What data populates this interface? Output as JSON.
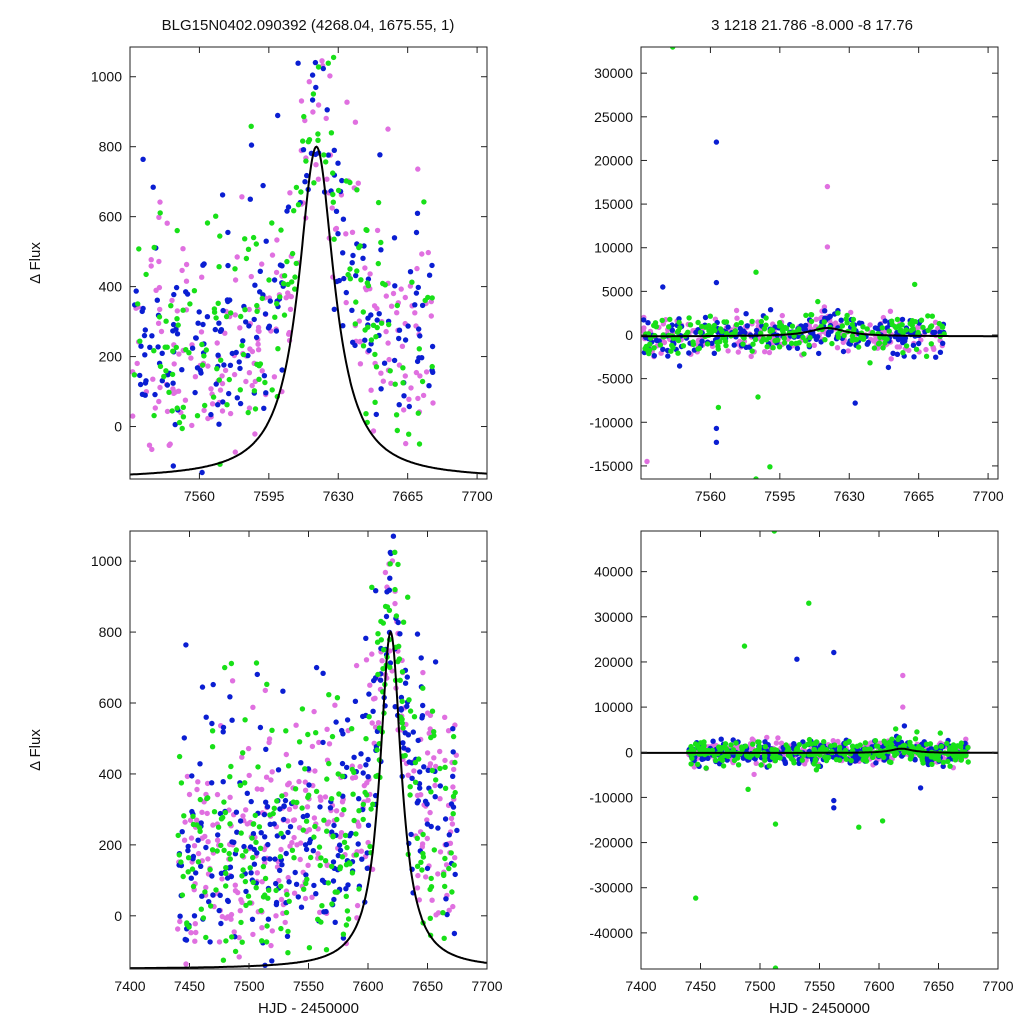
{
  "header": {
    "left_title": "BLG15N0402.090392 (4268.04, 1675.55,    1)",
    "right_title": "3   1218   21.786   -8.000   -8   17.76"
  },
  "colors": {
    "pink": "#e070e0",
    "blue": "#0a1ed2",
    "green": "#18e018",
    "model": "#000000"
  },
  "chart_data": [
    {
      "type": "scatter",
      "panel": "top-left",
      "xlabel": "",
      "ylabel": "Δ Flux",
      "xlim": [
        7525,
        7705
      ],
      "ylim": [
        -150,
        1085
      ],
      "xticks": [
        7560,
        7595,
        7630,
        7665,
        7700
      ],
      "yticks": [
        0,
        200,
        400,
        600,
        800,
        1000
      ],
      "model_curve": {
        "t0": 7619,
        "peak": 800,
        "base": -150,
        "width": 11,
        "label": ""
      },
      "series": [
        {
          "color": "#e070e0",
          "n": 230,
          "seed": 11,
          "xrange": [
            7526,
            7678
          ],
          "ymin": -150,
          "ymax": 1085,
          "spread": 420
        },
        {
          "color": "#0a1ed2",
          "n": 210,
          "seed": 12,
          "xrange": [
            7526,
            7678
          ],
          "ymin": -150,
          "ymax": 1085,
          "spread": 420
        },
        {
          "color": "#18e018",
          "n": 180,
          "seed": 13,
          "xrange": [
            7526,
            7678
          ],
          "ymin": -150,
          "ymax": 1085,
          "spread": 420
        }
      ]
    },
    {
      "type": "scatter",
      "panel": "top-right",
      "xlabel": "",
      "ylabel": "",
      "xlim": [
        7525,
        7705
      ],
      "ylim": [
        -16500,
        33000
      ],
      "xticks": [
        7560,
        7595,
        7630,
        7665,
        7700
      ],
      "yticks": [
        -15000,
        -10000,
        -5000,
        0,
        5000,
        10000,
        15000,
        20000,
        25000,
        30000
      ],
      "model_curve": {
        "t0": 7619,
        "peak": 800,
        "base": -150,
        "width": 11,
        "label": ""
      },
      "series": [
        {
          "color": "#e070e0",
          "n": 220,
          "seed": 21,
          "xrange": [
            7526,
            7678
          ],
          "ymin": -16500,
          "ymax": 33000,
          "spread": 1100
        },
        {
          "color": "#0a1ed2",
          "n": 200,
          "seed": 22,
          "xrange": [
            7526,
            7678
          ],
          "ymin": -16500,
          "ymax": 33000,
          "spread": 1100
        },
        {
          "color": "#18e018",
          "n": 220,
          "seed": 23,
          "xrange": [
            7526,
            7678
          ],
          "ymin": -16500,
          "ymax": 33000,
          "spread": 1100
        }
      ],
      "outliers": [
        {
          "x": 7541,
          "y": 33000,
          "c": "#18e018"
        },
        {
          "x": 7563,
          "y": 22100,
          "c": "#0a1ed2"
        },
        {
          "x": 7619,
          "y": 17000,
          "c": "#e070e0"
        },
        {
          "x": 7619,
          "y": 10100,
          "c": "#e070e0"
        },
        {
          "x": 7583,
          "y": 7200,
          "c": "#18e018"
        },
        {
          "x": 7563,
          "y": 6000,
          "c": "#0a1ed2"
        },
        {
          "x": 7536,
          "y": 5500,
          "c": "#0a1ed2"
        },
        {
          "x": 7663,
          "y": 5800,
          "c": "#18e018"
        },
        {
          "x": 7564,
          "y": -8300,
          "c": "#18e018"
        },
        {
          "x": 7563,
          "y": -10700,
          "c": "#0a1ed2"
        },
        {
          "x": 7563,
          "y": -12300,
          "c": "#0a1ed2"
        },
        {
          "x": 7584,
          "y": -7100,
          "c": "#18e018"
        },
        {
          "x": 7633,
          "y": -7800,
          "c": "#0a1ed2"
        },
        {
          "x": 7528,
          "y": -14500,
          "c": "#e070e0"
        },
        {
          "x": 7590,
          "y": -15100,
          "c": "#18e018"
        },
        {
          "x": 7583,
          "y": -16500,
          "c": "#18e018"
        }
      ]
    },
    {
      "type": "scatter",
      "panel": "bottom-left",
      "xlabel": "HJD - 2450000",
      "ylabel": "Δ Flux",
      "xlim": [
        7400,
        7700
      ],
      "ylim": [
        -150,
        1085
      ],
      "xticks": [
        7400,
        7450,
        7500,
        7550,
        7600,
        7650,
        7700
      ],
      "yticks": [
        0,
        200,
        400,
        600,
        800,
        1000
      ],
      "model_curve": {
        "t0": 7619,
        "peak": 800,
        "base": -150,
        "width": 11,
        "label": ""
      },
      "series": [
        {
          "color": "#e070e0",
          "n": 330,
          "seed": 31,
          "xrange": [
            7440,
            7675
          ],
          "ymin": -150,
          "ymax": 1085,
          "spread": 420
        },
        {
          "color": "#0a1ed2",
          "n": 300,
          "seed": 32,
          "xrange": [
            7440,
            7675
          ],
          "ymin": -150,
          "ymax": 1085,
          "spread": 420
        },
        {
          "color": "#18e018",
          "n": 300,
          "seed": 33,
          "xrange": [
            7440,
            7675
          ],
          "ymin": -150,
          "ymax": 1085,
          "spread": 420
        }
      ]
    },
    {
      "type": "scatter",
      "panel": "bottom-right",
      "xlabel": "HJD - 2450000",
      "ylabel": "",
      "xlim": [
        7400,
        7700
      ],
      "ylim": [
        -48000,
        49000
      ],
      "xticks": [
        7400,
        7450,
        7500,
        7550,
        7600,
        7650,
        7700
      ],
      "yticks": [
        -40000,
        -30000,
        -20000,
        -10000,
        0,
        10000,
        20000,
        30000,
        40000
      ],
      "model_curve": {
        "t0": 7619,
        "peak": 800,
        "base": -150,
        "width": 11,
        "label": ""
      },
      "series": [
        {
          "color": "#e070e0",
          "n": 300,
          "seed": 41,
          "xrange": [
            7440,
            7675
          ],
          "ymin": -48000,
          "ymax": 49000,
          "spread": 1300
        },
        {
          "color": "#0a1ed2",
          "n": 280,
          "seed": 42,
          "xrange": [
            7440,
            7675
          ],
          "ymin": -48000,
          "ymax": 49000,
          "spread": 1300
        },
        {
          "color": "#18e018",
          "n": 320,
          "seed": 43,
          "xrange": [
            7440,
            7675
          ],
          "ymin": -48000,
          "ymax": 49000,
          "spread": 1300
        }
      ],
      "outliers": [
        {
          "x": 7512,
          "y": 49000,
          "c": "#18e018"
        },
        {
          "x": 7541,
          "y": 33000,
          "c": "#18e018"
        },
        {
          "x": 7487,
          "y": 23500,
          "c": "#18e018"
        },
        {
          "x": 7562,
          "y": 22100,
          "c": "#0a1ed2"
        },
        {
          "x": 7531,
          "y": 20600,
          "c": "#0a1ed2"
        },
        {
          "x": 7620,
          "y": 17000,
          "c": "#e070e0"
        },
        {
          "x": 7620,
          "y": 10000,
          "c": "#e070e0"
        },
        {
          "x": 7490,
          "y": -8200,
          "c": "#18e018"
        },
        {
          "x": 7562,
          "y": -10700,
          "c": "#0a1ed2"
        },
        {
          "x": 7562,
          "y": -12300,
          "c": "#0a1ed2"
        },
        {
          "x": 7513,
          "y": -15900,
          "c": "#18e018"
        },
        {
          "x": 7583,
          "y": -16600,
          "c": "#18e018"
        },
        {
          "x": 7603,
          "y": -15200,
          "c": "#18e018"
        },
        {
          "x": 7635,
          "y": -7900,
          "c": "#0a1ed2"
        },
        {
          "x": 7446,
          "y": -32300,
          "c": "#18e018"
        },
        {
          "x": 7513,
          "y": -47800,
          "c": "#18e018"
        }
      ]
    }
  ]
}
